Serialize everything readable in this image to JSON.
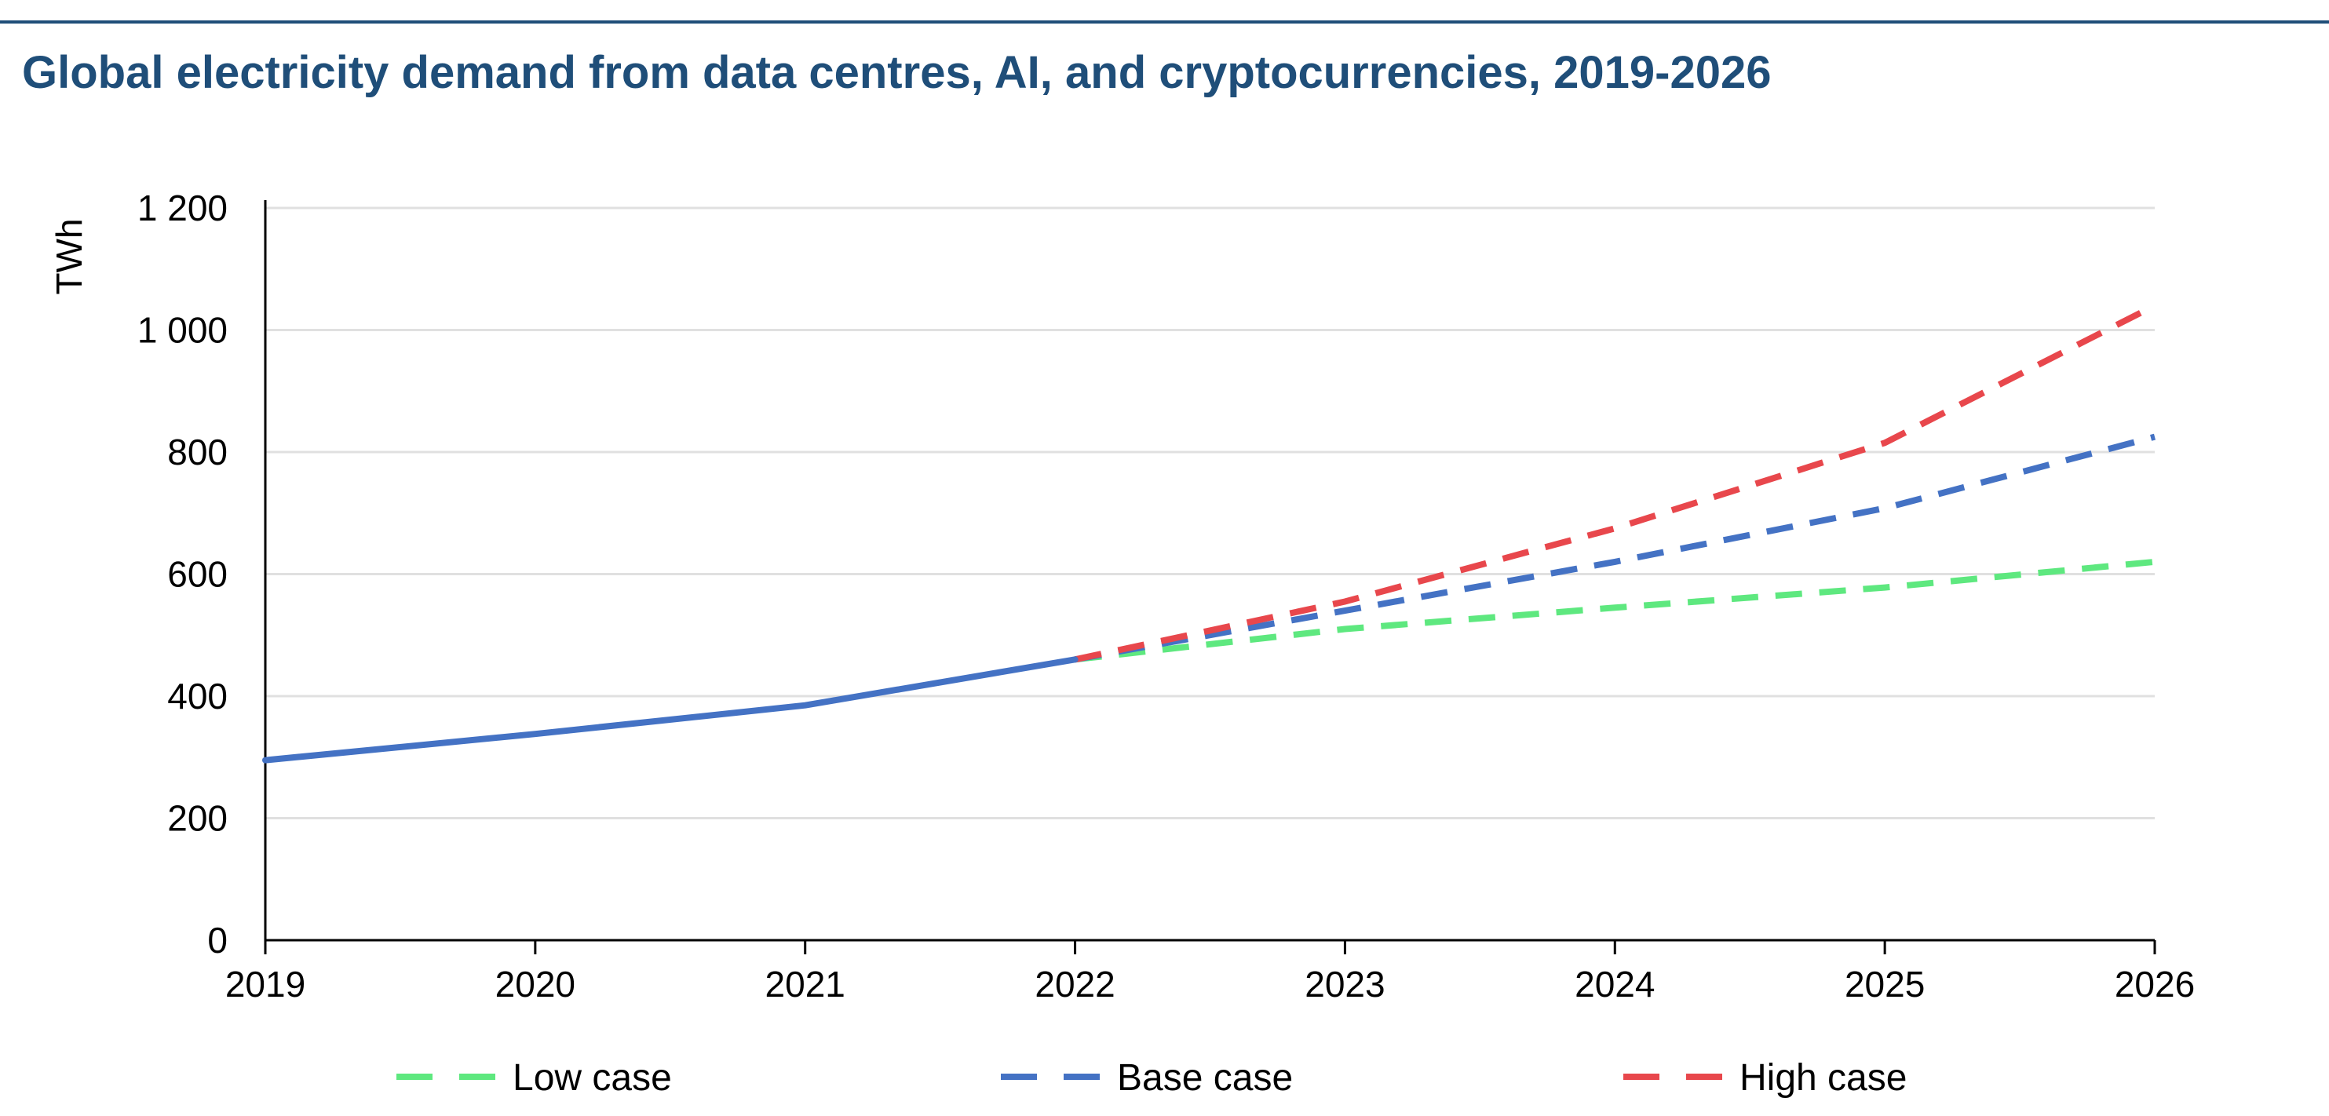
{
  "chart_data": {
    "type": "line",
    "title": "Global electricity demand from data centres, AI, and cryptocurrencies, 2019-2026",
    "ylabel": "TWh",
    "xlabel": "",
    "x": [
      "2019",
      "2020",
      "2021",
      "2022",
      "2023",
      "2024",
      "2025",
      "2026"
    ],
    "ylim": [
      0,
      1200
    ],
    "yticks": [
      0,
      200,
      400,
      600,
      800,
      1000,
      1200
    ],
    "ytick_labels": [
      "0",
      "200",
      "400",
      "600",
      "800",
      "1 000",
      "1 200"
    ],
    "grid": true,
    "legend_position": "bottom",
    "historical": {
      "x": [
        "2019",
        "2020",
        "2021",
        "2022"
      ],
      "values": [
        295,
        338,
        385,
        460
      ],
      "color": "#4472c4"
    },
    "series": [
      {
        "name": "Low case",
        "x": [
          "2022",
          "2023",
          "2024",
          "2025",
          "2026"
        ],
        "values": [
          460,
          510,
          545,
          578,
          620
        ],
        "color": "#5ee87f",
        "style": "dashed"
      },
      {
        "name": "Base case",
        "x": [
          "2022",
          "2023",
          "2024",
          "2025",
          "2026"
        ],
        "values": [
          460,
          540,
          620,
          708,
          825
        ],
        "color": "#4472c4",
        "style": "dashed"
      },
      {
        "name": "High case",
        "x": [
          "2022",
          "2023",
          "2024",
          "2025",
          "2026"
        ],
        "values": [
          460,
          555,
          675,
          815,
          1040
        ],
        "color": "#e8474c",
        "style": "dashed"
      }
    ],
    "colors": {
      "title": "#1f4e79",
      "top_rule": "#1f4e79",
      "grid": "#e0e0e0",
      "axis": "#000000"
    }
  }
}
